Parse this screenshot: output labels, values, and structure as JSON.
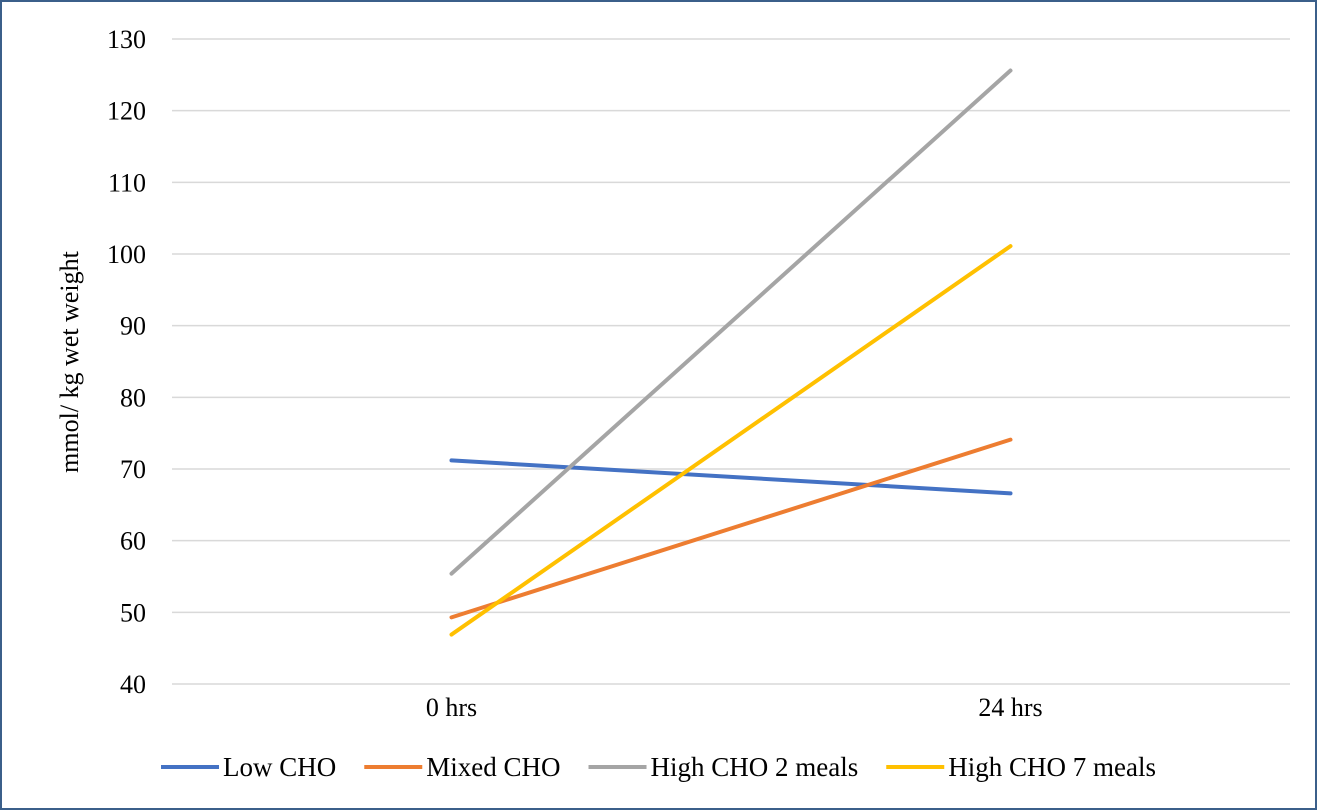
{
  "chart_data": {
    "type": "line",
    "categories": [
      "0 hrs",
      "24 hrs"
    ],
    "series": [
      {
        "name": "Low CHO",
        "values": [
          71.2,
          66.6
        ],
        "color": "#4472c4"
      },
      {
        "name": "Mixed CHO",
        "values": [
          49.3,
          74.1
        ],
        "color": "#ed7d31"
      },
      {
        "name": "High CHO 2 meals",
        "values": [
          55.4,
          125.6
        ],
        "color": "#a5a5a5"
      },
      {
        "name": "High CHO 7 meals",
        "values": [
          46.9,
          101.1
        ],
        "color": "#ffc000"
      }
    ],
    "ylabel": "mmol/ kg wet weight",
    "ylim": [
      40,
      130
    ],
    "yticks": [
      "40",
      "50",
      "60",
      "70",
      "80",
      "90",
      "100",
      "110",
      "120",
      "130"
    ],
    "grid": true,
    "legend_position": "bottom"
  }
}
